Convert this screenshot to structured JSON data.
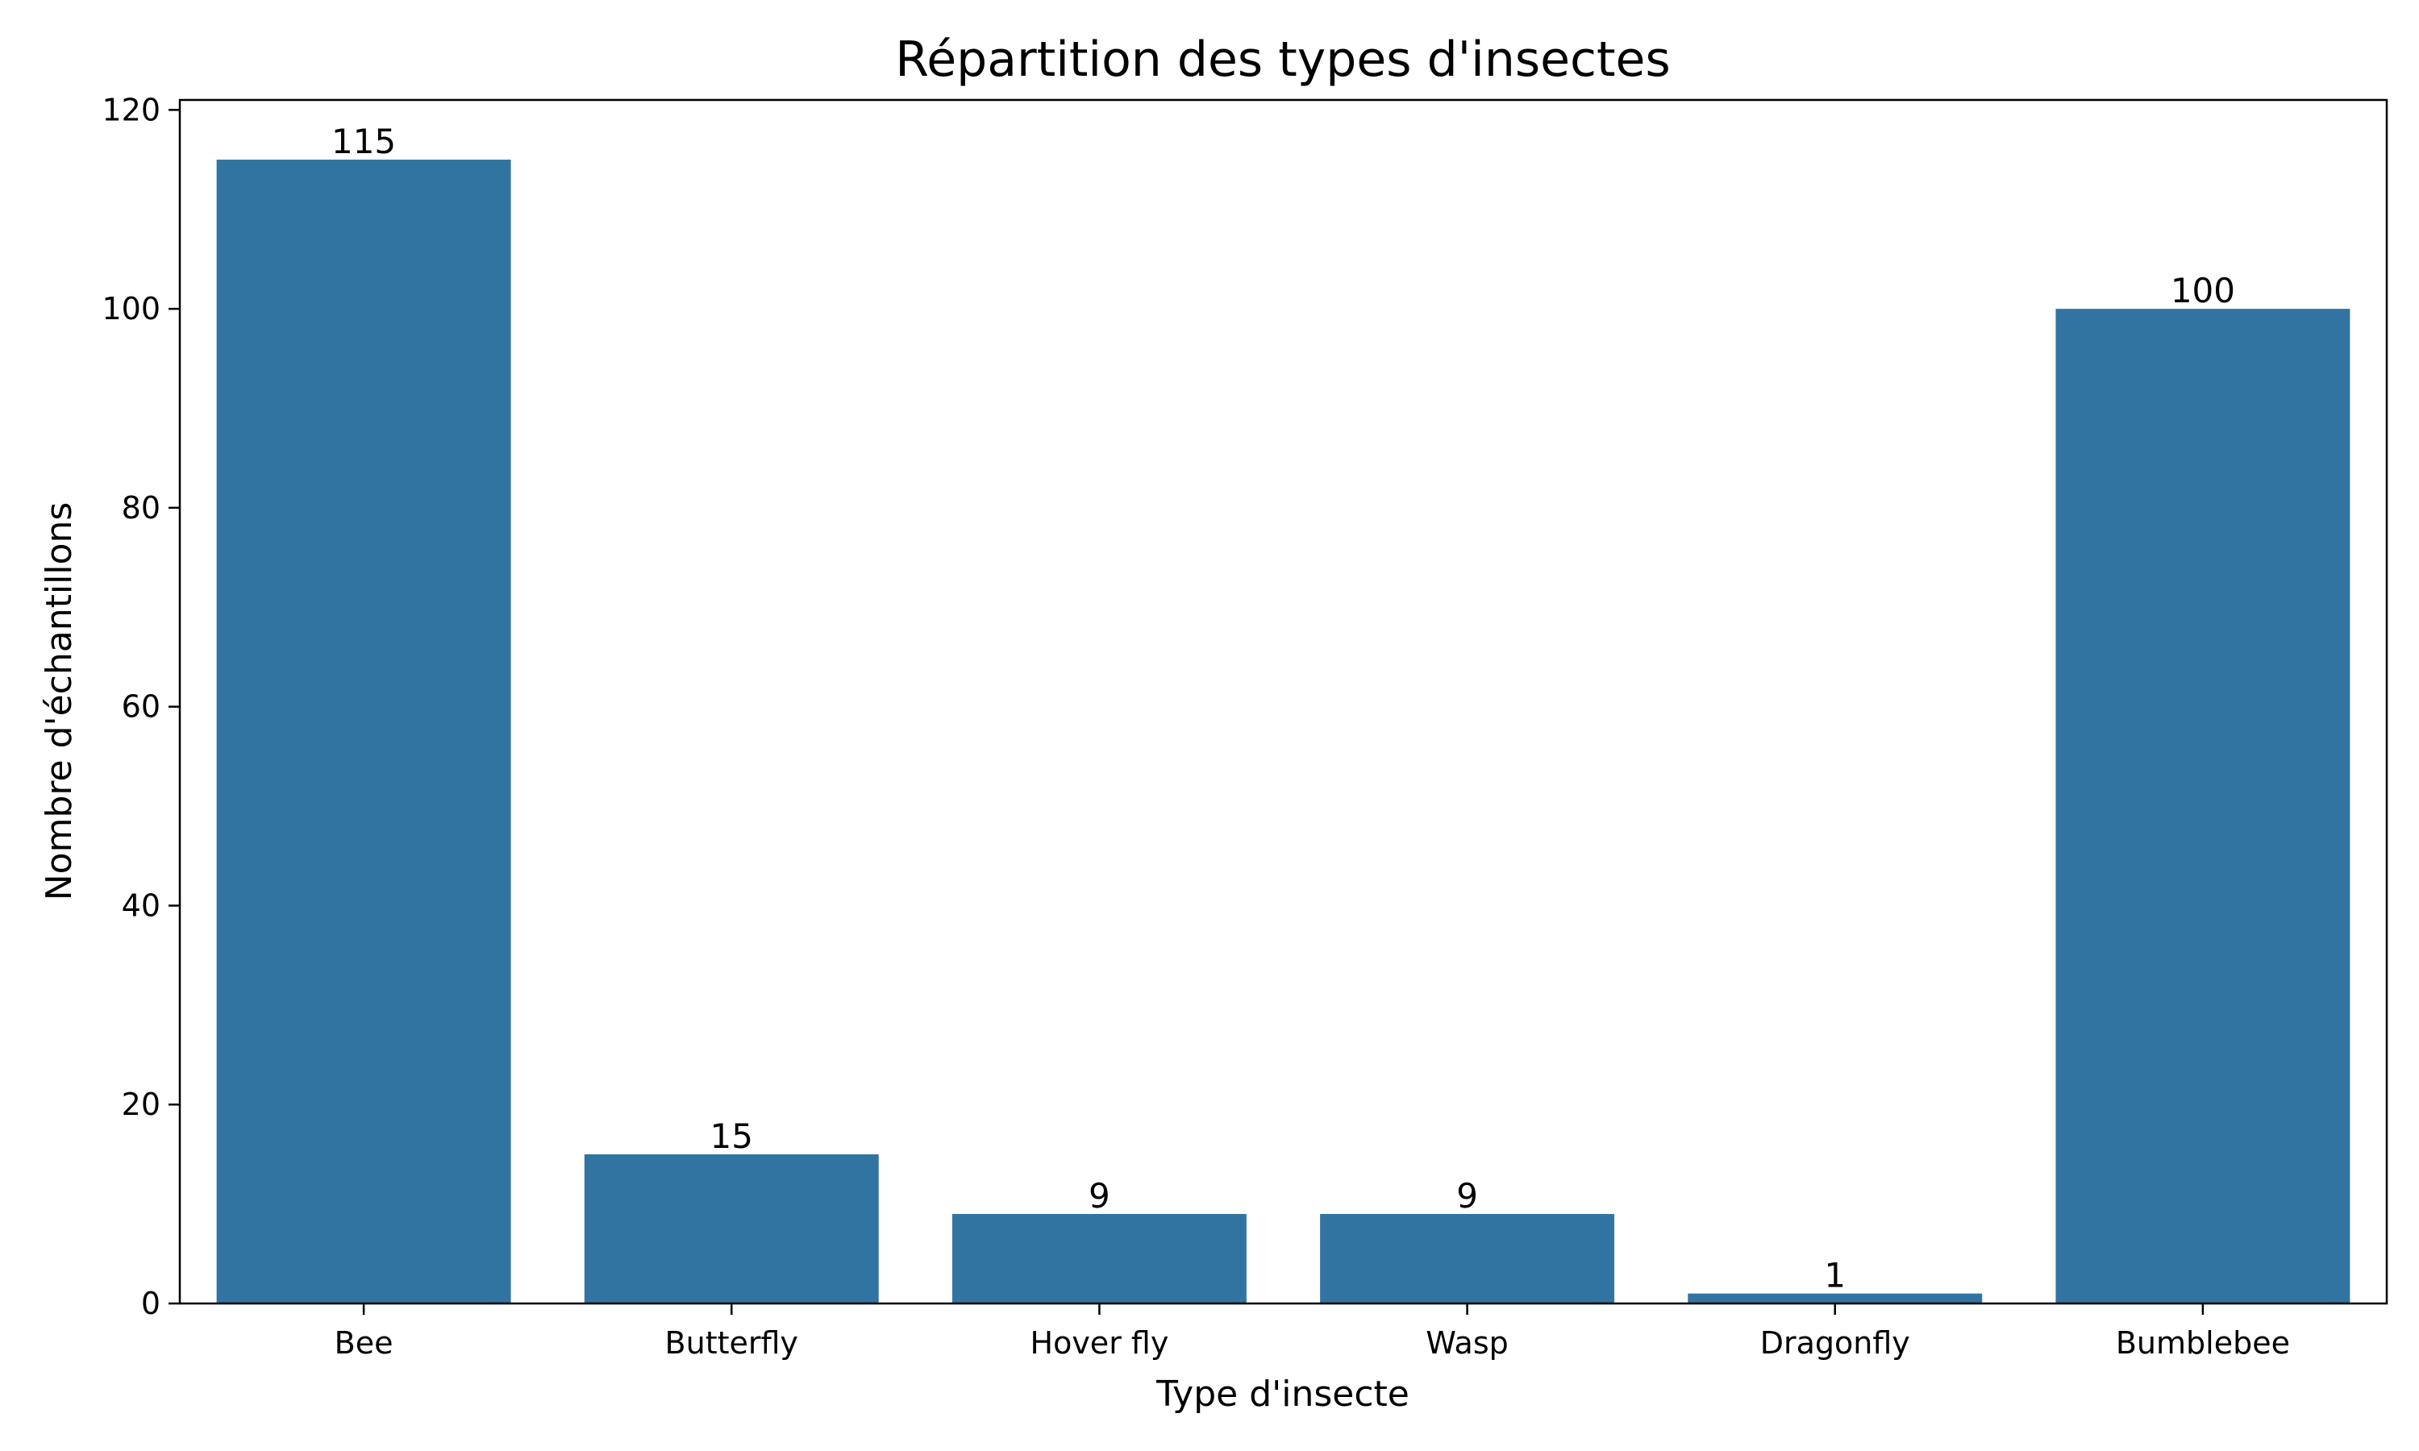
{
  "chart_data": {
    "type": "bar",
    "title": "Répartition des types d'insectes",
    "xlabel": "Type d'insecte",
    "ylabel": "Nombre d'échantillons",
    "categories": [
      "Bee",
      "Butterfly",
      "Hover fly",
      "Wasp",
      "Dragonfly",
      "Bumblebee"
    ],
    "values": [
      115,
      15,
      9,
      9,
      1,
      100
    ],
    "data_labels": [
      "115",
      "15",
      "9",
      "9",
      "1",
      "100"
    ],
    "ylim": [
      0,
      121
    ],
    "yticks": [
      0,
      20,
      40,
      60,
      80,
      100,
      120
    ],
    "grid": false,
    "legend": "none",
    "bar_color": "#3274a1"
  }
}
